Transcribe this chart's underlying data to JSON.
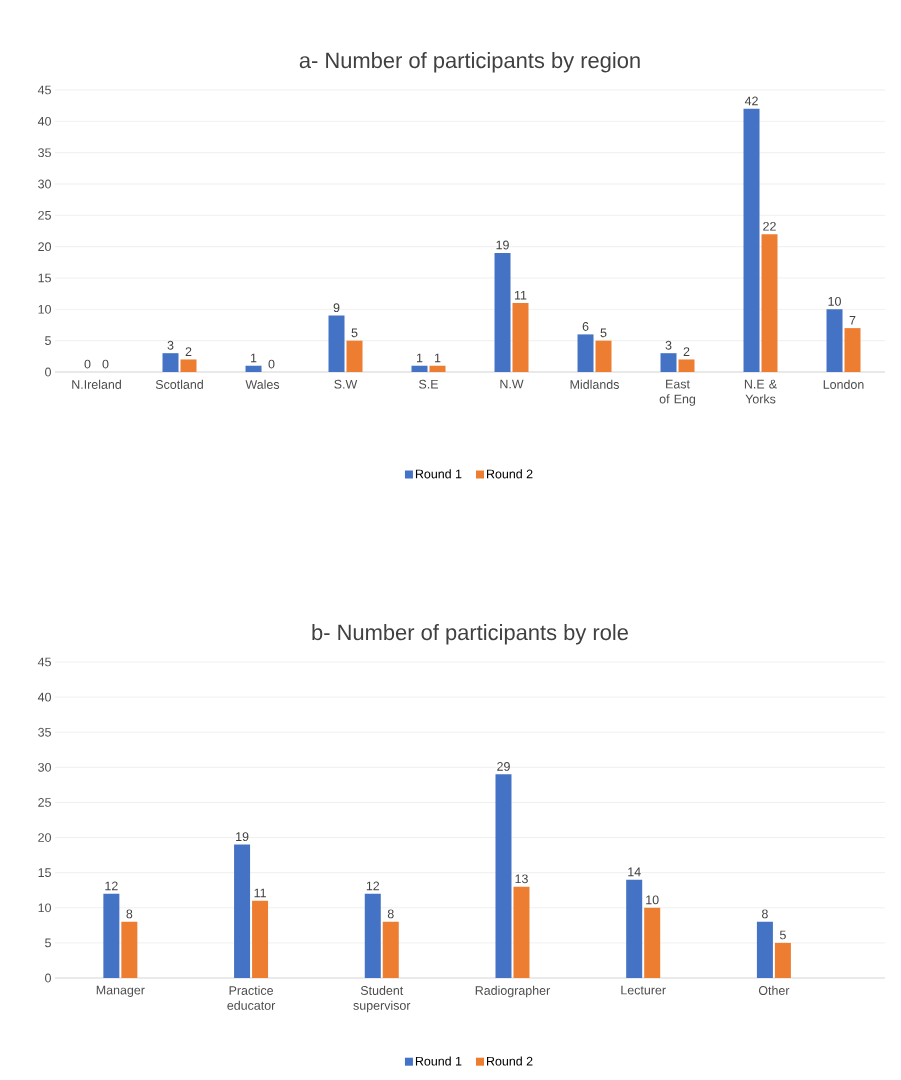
{
  "chart_data": [
    {
      "type": "bar",
      "title": "a- Number of participants by region",
      "categories": [
        "N.Ireland",
        "Scotland",
        "Wales",
        "S.W",
        "S.E",
        "N.W",
        "Midlands",
        "East of Eng",
        "N.E & Yorks",
        "London"
      ],
      "series": [
        {
          "name": "Round 1",
          "color": "#4472c4",
          "values": [
            0,
            3,
            1,
            9,
            1,
            19,
            6,
            3,
            42,
            10
          ]
        },
        {
          "name": "Round 2",
          "color": "#ed7d31",
          "values": [
            0,
            2,
            0,
            5,
            1,
            11,
            5,
            2,
            22,
            7
          ]
        }
      ],
      "ylim": [
        0,
        45
      ],
      "yticks": [
        0,
        5,
        10,
        15,
        20,
        25,
        30,
        35,
        40,
        45
      ],
      "grid": "y",
      "legend": "bottom",
      "data_labels": true
    },
    {
      "type": "bar",
      "title": "b- Number of participants by role",
      "categories": [
        "Manager",
        "Practice educator",
        "Student supervisor",
        "Radiographer",
        "Lecturer",
        "Other"
      ],
      "series": [
        {
          "name": "Round 1",
          "color": "#4472c4",
          "values": [
            12,
            19,
            12,
            29,
            14,
            8
          ]
        },
        {
          "name": "Round 2",
          "color": "#ed7d31",
          "values": [
            8,
            11,
            8,
            13,
            10,
            5
          ]
        }
      ],
      "ylim": [
        0,
        45
      ],
      "yticks": [
        0,
        5,
        10,
        15,
        20,
        25,
        30,
        35,
        40,
        45
      ],
      "grid": "y",
      "legend": "bottom",
      "data_labels": true
    }
  ]
}
